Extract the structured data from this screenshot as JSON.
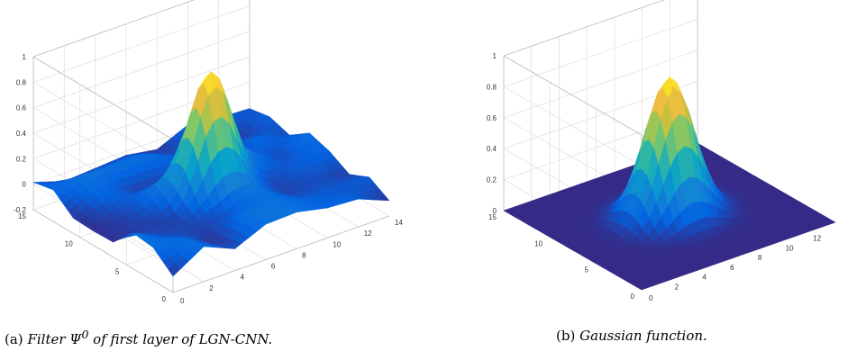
{
  "chart_data": [
    {
      "type": "surface",
      "title": "",
      "xlabel": "",
      "ylabel": "",
      "zlabel": "",
      "xlim": [
        0,
        14
      ],
      "ylim": [
        0,
        15
      ],
      "zlim": [
        -0.2,
        1
      ],
      "x_ticks": [
        "2",
        "4",
        "6",
        "8",
        "10",
        "12",
        "14"
      ],
      "y_ticks": [
        "0",
        "5",
        "10",
        "15"
      ],
      "z_ticks": [
        "-0.2",
        "0",
        "0.2",
        "0.4",
        "0.6",
        "0.8",
        "1"
      ],
      "grid": true,
      "colormap": "parula",
      "surface_description": "Learned filter: sharp central peak of about 0.9 at the grid center over a noisy, slightly negative-to-positive background around 0",
      "peak_value": 0.9,
      "background_range": [
        -0.1,
        0.1
      ]
    },
    {
      "type": "surface",
      "title": "",
      "xlabel": "",
      "ylabel": "",
      "zlabel": "",
      "xlim": [
        0,
        14
      ],
      "ylim": [
        0,
        15
      ],
      "zlim": [
        0,
        1
      ],
      "x_ticks": [
        "2",
        "4",
        "6",
        "8",
        "10",
        "12"
      ],
      "y_ticks": [
        "0",
        "5",
        "10",
        "15"
      ],
      "z_ticks": [
        "0",
        "0.2",
        "0.4",
        "0.6",
        "0.8",
        "1"
      ],
      "grid": true,
      "colormap": "parula",
      "surface_description": "Smooth 2D Gaussian centered on the grid with peak about 0.9 and flat zero background",
      "peak_value": 0.9,
      "background_range": [
        0,
        0
      ]
    }
  ],
  "captions": {
    "a": {
      "label": "(a)",
      "text_before": "Filter ",
      "symbol": "Ψ",
      "superscript": "0",
      "text_after": " of first layer of LGN-CNN."
    },
    "b": {
      "label": "(b)",
      "text": "Gaussian function."
    }
  }
}
